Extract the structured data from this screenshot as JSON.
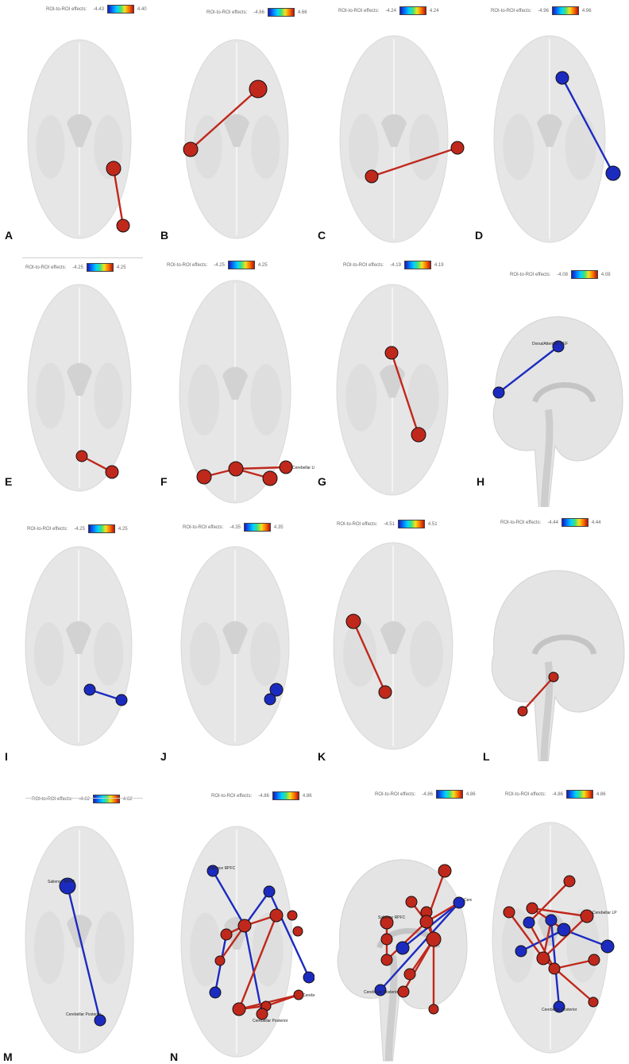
{
  "colorbar_title": "ROI-to-ROI effects:",
  "colors": {
    "positive": "#c0281c",
    "negative": "#1c2bbf",
    "brain": "#dedede"
  },
  "panels": [
    {
      "id": "A",
      "view": "axial",
      "cbar": {
        "lo": "-4.43",
        "hi": "4.40"
      }
    },
    {
      "id": "B",
      "view": "axial",
      "cbar": {
        "lo": "-4.66",
        "hi": "4.66"
      }
    },
    {
      "id": "C",
      "view": "axial",
      "cbar": {
        "lo": "-4.24",
        "hi": "4.24"
      }
    },
    {
      "id": "D",
      "view": "axial",
      "cbar": {
        "lo": "-4.96",
        "hi": "4.96"
      }
    },
    {
      "id": "E",
      "view": "axial",
      "cbar": {
        "lo": "-4.25",
        "hi": "4.25"
      }
    },
    {
      "id": "F",
      "view": "axial-low",
      "cbar": {
        "lo": "-4.25",
        "hi": "4.25"
      },
      "labels": [
        "Cerebellar LP"
      ]
    },
    {
      "id": "G",
      "view": "axial",
      "cbar": {
        "lo": "-4.19",
        "hi": "4.19"
      }
    },
    {
      "id": "H",
      "view": "sagittal",
      "cbar": {
        "lo": "-4.08",
        "hi": "4.08"
      },
      "labels": [
        "DorsalAttention FEF"
      ]
    },
    {
      "id": "I",
      "view": "axial",
      "cbar": {
        "lo": "-4.25",
        "hi": "4.25"
      }
    },
    {
      "id": "J",
      "view": "axial",
      "cbar": {
        "lo": "-4.35",
        "hi": "4.35"
      }
    },
    {
      "id": "K",
      "view": "axial",
      "cbar": {
        "lo": "-4.51",
        "hi": "4.51"
      }
    },
    {
      "id": "L",
      "view": "sagittal",
      "cbar": {
        "lo": "-4.44",
        "hi": "4.44"
      }
    },
    {
      "id": "M",
      "view": "axial",
      "cbar": {
        "lo": "-4.62",
        "hi": "4.62"
      },
      "labels": [
        "Salience RPFC",
        "Cerebellar Posterior"
      ]
    },
    {
      "id": "N",
      "view": "axial",
      "cbar": {
        "lo": "-4.86",
        "hi": "4.86"
      },
      "labels": [
        "Salience RPFC",
        "Cerebellar LP",
        "Cerebellar Posterior"
      ]
    },
    {
      "id": "",
      "view": "sagittal",
      "cbar": {
        "lo": "-4.86",
        "hi": "4.86"
      },
      "labels": [
        "Cerebellar LP",
        "Salience RPFC",
        "Cerebellar Posterior"
      ]
    },
    {
      "id": "",
      "view": "axial",
      "cbar": {
        "lo": "-4.86",
        "hi": "4.86"
      },
      "labels": [
        "Cerebellar LP",
        "Cerebellar Posterior"
      ]
    }
  ]
}
